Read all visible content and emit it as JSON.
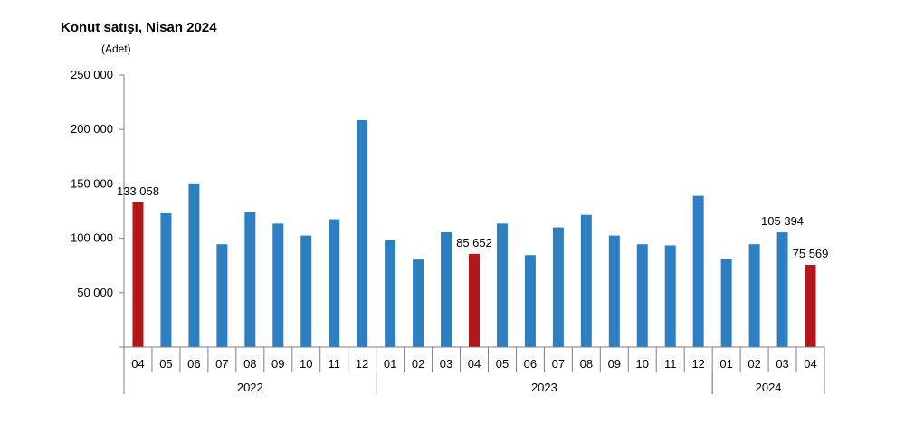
{
  "title": "Konut satışı, Nisan 2024",
  "unit": "(Adet)",
  "colors": {
    "normal": "#2E7FC1",
    "highlight": "#B4161B",
    "axis": "#7f7f7f"
  },
  "chart_data": {
    "type": "bar",
    "title": "Konut satışı, Nisan 2024",
    "ylabel": "(Adet)",
    "ylim": [
      0,
      250000
    ],
    "yticks": [
      50000,
      100000,
      150000,
      200000,
      250000
    ],
    "ytick_labels": [
      "50 000",
      "100 000",
      "150 000",
      "200 000",
      "250 000"
    ],
    "grid": false,
    "categories": [
      "04",
      "05",
      "06",
      "07",
      "08",
      "09",
      "10",
      "11",
      "12",
      "01",
      "02",
      "03",
      "04",
      "05",
      "06",
      "07",
      "08",
      "09",
      "10",
      "11",
      "12",
      "01",
      "02",
      "03",
      "04"
    ],
    "values": [
      133058,
      123000,
      150500,
      94500,
      124000,
      113500,
      102500,
      117500,
      208500,
      98500,
      80500,
      105500,
      85652,
      113500,
      84500,
      110000,
      121500,
      102500,
      94500,
      93500,
      139000,
      81000,
      94500,
      105394,
      75569
    ],
    "highlight": [
      true,
      false,
      false,
      false,
      false,
      false,
      false,
      false,
      false,
      false,
      false,
      false,
      true,
      false,
      false,
      false,
      false,
      false,
      false,
      false,
      false,
      false,
      false,
      false,
      true
    ],
    "data_labels": [
      {
        "index": 0,
        "text": "133 058"
      },
      {
        "index": 12,
        "text": "85 652"
      },
      {
        "index": 23,
        "text": "105 394"
      },
      {
        "index": 24,
        "text": "75 569"
      }
    ],
    "year_groups": [
      {
        "label": "2022",
        "start": 0,
        "count": 9
      },
      {
        "label": "2023",
        "start": 9,
        "count": 12
      },
      {
        "label": "2024",
        "start": 21,
        "count": 4
      }
    ]
  }
}
